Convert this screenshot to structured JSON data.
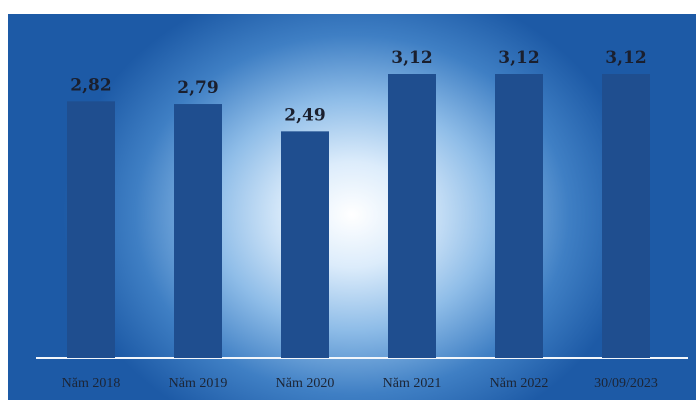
{
  "chart_data": {
    "type": "bar",
    "categories": [
      "Năm 2018",
      "Năm 2019",
      "Năm 2020",
      "Năm 2021",
      "Năm 2022",
      "30/09/2023"
    ],
    "values": [
      2.82,
      2.79,
      2.49,
      3.12,
      3.12,
      3.12
    ],
    "value_labels": [
      "2,82",
      "2,79",
      "2,49",
      "3,12",
      "3,12",
      "3,12"
    ],
    "title": "",
    "xlabel": "",
    "ylabel": "",
    "ylim": [
      0,
      3.12
    ],
    "grid": false,
    "legend": "none",
    "bar_color": "#1f4e8f",
    "baseline_color": "#f2f6fb"
  }
}
